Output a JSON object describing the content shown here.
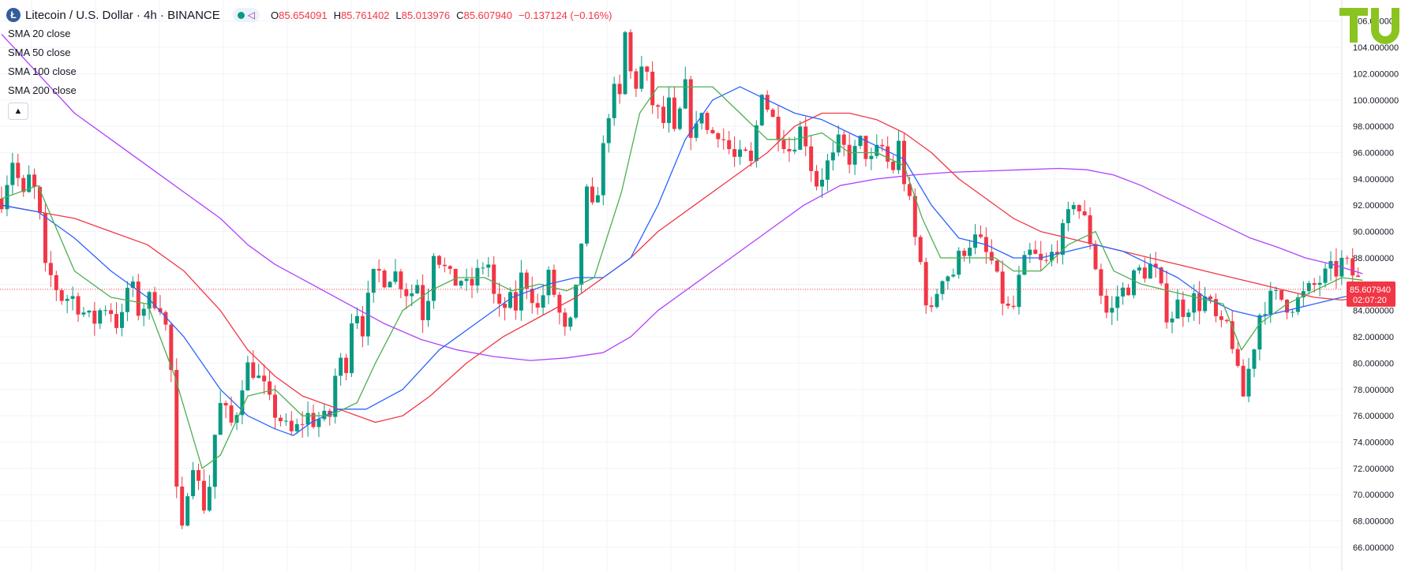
{
  "header": {
    "symbol_icon": "litecoin-icon",
    "title": "Litecoin / U.S. Dollar · 4h · BINANCE",
    "ohlc": {
      "open_label": "O",
      "open": "85.654091",
      "high_label": "H",
      "high": "85.761402",
      "low_label": "L",
      "low": "85.013976",
      "close_label": "C",
      "close": "85.607940",
      "change": "−0.137124 (−0.16%)"
    }
  },
  "indicators": [
    "SMA 20 close",
    "SMA 50 close",
    "SMA 100 close",
    "SMA 200 close"
  ],
  "collapse_icon": "chevron-up-icon",
  "logo": {
    "text": "TU"
  },
  "colors": {
    "up": "#089981",
    "down": "#f23645",
    "sma20": "#4caf50",
    "sma50": "#2962ff",
    "sma100": "#f23645",
    "sma200": "#b040ff",
    "logo": "#8bc420"
  },
  "price_label": {
    "value": "85.607940",
    "countdown": "02:07:20"
  },
  "chart_data": {
    "type": "candlestick",
    "title": "Litecoin / U.S. Dollar · 4h · BINANCE",
    "y_ticks": [
      "66.000000",
      "68.000000",
      "70.000000",
      "72.000000",
      "74.000000",
      "76.000000",
      "78.000000",
      "80.000000",
      "82.000000",
      "84.000000",
      "86.000000",
      "88.000000",
      "90.000000",
      "92.000000",
      "94.000000",
      "96.000000",
      "98.000000",
      "100.000000",
      "102.000000",
      "104.000000",
      "106.000000"
    ],
    "ylim": [
      64.2,
      107.6
    ],
    "grid": true,
    "current_price": 85.60794,
    "close_path": [
      [
        0,
        92.5
      ],
      [
        8,
        94.5
      ],
      [
        14,
        96
      ],
      [
        22,
        92
      ],
      [
        30,
        94
      ],
      [
        40,
        92.5
      ],
      [
        47,
        87
      ],
      [
        55,
        86.5
      ],
      [
        65,
        85
      ],
      [
        78,
        85
      ],
      [
        88,
        84
      ],
      [
        100,
        83
      ],
      [
        112,
        84.5
      ],
      [
        120,
        84
      ],
      [
        130,
        82.5
      ],
      [
        140,
        86.5
      ],
      [
        150,
        84
      ],
      [
        165,
        85
      ],
      [
        175,
        84.5
      ],
      [
        182,
        82
      ],
      [
        188,
        78
      ],
      [
        192,
        70
      ],
      [
        195,
        65.5
      ],
      [
        200,
        68
      ],
      [
        206,
        72
      ],
      [
        212,
        73
      ],
      [
        218,
        69.5
      ],
      [
        225,
        69
      ],
      [
        230,
        72
      ],
      [
        237,
        76.5
      ],
      [
        243,
        77
      ],
      [
        250,
        75
      ],
      [
        258,
        76.5
      ],
      [
        265,
        79
      ],
      [
        272,
        80
      ],
      [
        280,
        79
      ],
      [
        288,
        78
      ],
      [
        296,
        76.5
      ],
      [
        304,
        76
      ],
      [
        312,
        75
      ],
      [
        320,
        74.5
      ],
      [
        328,
        75.5
      ],
      [
        336,
        76
      ],
      [
        344,
        75.5
      ],
      [
        352,
        76
      ],
      [
        358,
        75
      ],
      [
        366,
        79
      ],
      [
        372,
        80
      ],
      [
        378,
        80
      ],
      [
        384,
        83.5
      ],
      [
        390,
        84
      ],
      [
        397,
        82.5
      ],
      [
        405,
        86
      ],
      [
        412,
        87
      ],
      [
        420,
        86.5
      ],
      [
        430,
        87
      ],
      [
        440,
        86
      ],
      [
        448,
        85
      ],
      [
        455,
        86.5
      ],
      [
        460,
        84.5
      ],
      [
        465,
        82.5
      ],
      [
        472,
        89
      ],
      [
        480,
        88
      ],
      [
        487,
        87
      ],
      [
        495,
        86
      ],
      [
        503,
        86.5
      ],
      [
        512,
        85.5
      ],
      [
        520,
        86.5
      ],
      [
        528,
        87.5
      ],
      [
        535,
        87.5
      ],
      [
        540,
        85
      ],
      [
        545,
        84
      ],
      [
        550,
        83.5
      ],
      [
        555,
        85.5
      ],
      [
        562,
        83.5
      ],
      [
        570,
        86.5
      ],
      [
        578,
        86
      ],
      [
        588,
        84
      ],
      [
        600,
        86.5
      ],
      [
        610,
        84.5
      ],
      [
        615,
        82.5
      ],
      [
        621,
        82
      ],
      [
        628,
        84
      ],
      [
        635,
        88.5
      ],
      [
        641,
        93
      ],
      [
        648,
        91.5
      ],
      [
        656,
        94
      ],
      [
        665,
        99
      ],
      [
        672,
        100.5
      ],
      [
        678,
        100
      ],
      [
        684,
        105
      ],
      [
        690,
        102
      ],
      [
        698,
        101
      ],
      [
        704,
        103
      ],
      [
        712,
        100
      ],
      [
        720,
        99
      ],
      [
        728,
        98
      ],
      [
        733,
        100
      ],
      [
        740,
        96
      ],
      [
        748,
        102
      ],
      [
        755,
        98
      ],
      [
        760,
        97
      ],
      [
        768,
        99.5
      ],
      [
        776,
        97
      ],
      [
        784,
        98
      ],
      [
        792,
        97
      ],
      [
        800,
        96
      ],
      [
        808,
        95
      ],
      [
        814,
        96.5
      ],
      [
        820,
        94
      ],
      [
        828,
        98
      ],
      [
        834,
        101
      ],
      [
        842,
        99
      ],
      [
        850,
        98
      ],
      [
        858,
        97
      ],
      [
        866,
        96
      ],
      [
        874,
        98
      ],
      [
        882,
        97
      ],
      [
        888,
        95
      ],
      [
        895,
        93.5
      ],
      [
        904,
        95
      ],
      [
        912,
        95.5
      ],
      [
        920,
        97
      ],
      [
        928,
        95.5
      ],
      [
        936,
        96
      ],
      [
        944,
        97
      ],
      [
        952,
        95
      ],
      [
        960,
        96
      ],
      [
        968,
        96.5
      ],
      [
        976,
        94
      ],
      [
        983,
        97
      ],
      [
        990,
        94
      ],
      [
        996,
        92
      ],
      [
        1003,
        89
      ],
      [
        1010,
        87
      ],
      [
        1016,
        84
      ],
      [
        1022,
        83.5
      ],
      [
        1028,
        86.5
      ],
      [
        1035,
        87
      ],
      [
        1042,
        86.5
      ],
      [
        1050,
        88
      ],
      [
        1058,
        89
      ],
      [
        1066,
        89.5
      ],
      [
        1074,
        89
      ],
      [
        1082,
        88
      ],
      [
        1088,
        87.5
      ],
      [
        1094,
        85.5
      ],
      [
        1100,
        84.5
      ],
      [
        1108,
        83.5
      ],
      [
        1115,
        86
      ],
      [
        1122,
        87.5
      ],
      [
        1130,
        88.5
      ],
      [
        1138,
        87.5
      ],
      [
        1146,
        87.5
      ],
      [
        1154,
        88.5
      ],
      [
        1162,
        89.5
      ],
      [
        1170,
        91
      ],
      [
        1176,
        92.5
      ],
      [
        1183,
        91.5
      ],
      [
        1190,
        90.5
      ],
      [
        1197,
        88.5
      ],
      [
        1204,
        86
      ],
      [
        1210,
        84
      ],
      [
        1216,
        83.5
      ],
      [
        1222,
        85
      ],
      [
        1230,
        85.5
      ],
      [
        1238,
        86
      ],
      [
        1246,
        87
      ],
      [
        1255,
        87
      ],
      [
        1262,
        87.5
      ],
      [
        1270,
        86
      ],
      [
        1276,
        84
      ],
      [
        1282,
        83.5
      ],
      [
        1290,
        84.5
      ],
      [
        1298,
        84
      ],
      [
        1306,
        85
      ],
      [
        1314,
        84.5
      ],
      [
        1322,
        85
      ],
      [
        1330,
        83.5
      ],
      [
        1338,
        82.5
      ],
      [
        1345,
        83
      ],
      [
        1352,
        81
      ],
      [
        1358,
        78
      ],
      [
        1362,
        77.5
      ],
      [
        1366,
        79
      ],
      [
        1372,
        80.5
      ],
      [
        1378,
        83.5
      ],
      [
        1386,
        84.5
      ],
      [
        1394,
        85
      ],
      [
        1402,
        85
      ],
      [
        1410,
        84.5
      ],
      [
        1418,
        84.5
      ],
      [
        1426,
        85
      ],
      [
        1434,
        85.5
      ],
      [
        1442,
        86
      ],
      [
        1450,
        86.5
      ],
      [
        1458,
        87
      ],
      [
        1466,
        87
      ],
      [
        1472,
        88
      ],
      [
        1478,
        87
      ],
      [
        1486,
        86.5
      ],
      [
        1493,
        85.6
      ]
    ],
    "sma20": [
      [
        0,
        92.5
      ],
      [
        40,
        93.5
      ],
      [
        80,
        87
      ],
      [
        120,
        85
      ],
      [
        160,
        84.5
      ],
      [
        190,
        79
      ],
      [
        220,
        72
      ],
      [
        240,
        73
      ],
      [
        270,
        77.5
      ],
      [
        300,
        78
      ],
      [
        330,
        76
      ],
      [
        360,
        76
      ],
      [
        390,
        77
      ],
      [
        410,
        80
      ],
      [
        440,
        84
      ],
      [
        470,
        85.5
      ],
      [
        500,
        86.5
      ],
      [
        530,
        86.5
      ],
      [
        560,
        85.5
      ],
      [
        590,
        86
      ],
      [
        620,
        85.5
      ],
      [
        650,
        86.5
      ],
      [
        680,
        93
      ],
      [
        700,
        99
      ],
      [
        720,
        101
      ],
      [
        750,
        101
      ],
      [
        780,
        101
      ],
      [
        810,
        99
      ],
      [
        840,
        97
      ],
      [
        870,
        97
      ],
      [
        900,
        97.5
      ],
      [
        930,
        96
      ],
      [
        960,
        96
      ],
      [
        990,
        95
      ],
      [
        1010,
        91
      ],
      [
        1030,
        88
      ],
      [
        1060,
        88
      ],
      [
        1090,
        88
      ],
      [
        1110,
        87
      ],
      [
        1140,
        87
      ],
      [
        1170,
        89
      ],
      [
        1200,
        90
      ],
      [
        1220,
        87
      ],
      [
        1250,
        86
      ],
      [
        1280,
        85.5
      ],
      [
        1310,
        85
      ],
      [
        1340,
        84.5
      ],
      [
        1360,
        81
      ],
      [
        1380,
        83
      ],
      [
        1410,
        84.5
      ],
      [
        1440,
        85.5
      ],
      [
        1470,
        86.5
      ],
      [
        1493,
        86.3
      ]
    ],
    "sma50": [
      [
        0,
        92
      ],
      [
        40,
        91.5
      ],
      [
        80,
        89.5
      ],
      [
        120,
        87
      ],
      [
        160,
        85
      ],
      [
        200,
        82
      ],
      [
        240,
        78
      ],
      [
        270,
        76
      ],
      [
        300,
        75
      ],
      [
        320,
        74.5
      ],
      [
        340,
        75.5
      ],
      [
        370,
        76.5
      ],
      [
        400,
        76.5
      ],
      [
        440,
        78
      ],
      [
        480,
        81
      ],
      [
        520,
        83
      ],
      [
        560,
        85
      ],
      [
        600,
        86
      ],
      [
        630,
        86.5
      ],
      [
        660,
        86.5
      ],
      [
        690,
        88
      ],
      [
        720,
        92
      ],
      [
        750,
        97
      ],
      [
        780,
        100
      ],
      [
        810,
        101
      ],
      [
        840,
        100
      ],
      [
        870,
        99
      ],
      [
        900,
        98.5
      ],
      [
        930,
        97.5
      ],
      [
        960,
        96.5
      ],
      [
        990,
        95.5
      ],
      [
        1020,
        92
      ],
      [
        1050,
        89.5
      ],
      [
        1080,
        89
      ],
      [
        1110,
        88
      ],
      [
        1140,
        88
      ],
      [
        1170,
        88.5
      ],
      [
        1200,
        89
      ],
      [
        1230,
        88.5
      ],
      [
        1260,
        87.5
      ],
      [
        1290,
        86.5
      ],
      [
        1320,
        85
      ],
      [
        1350,
        84
      ],
      [
        1380,
        83.5
      ],
      [
        1410,
        84
      ],
      [
        1440,
        84.5
      ],
      [
        1470,
        85
      ],
      [
        1493,
        85.3
      ]
    ],
    "sma100": [
      [
        0,
        92
      ],
      [
        40,
        91.5
      ],
      [
        80,
        91
      ],
      [
        120,
        90
      ],
      [
        160,
        89
      ],
      [
        200,
        87
      ],
      [
        240,
        84
      ],
      [
        270,
        81
      ],
      [
        300,
        79
      ],
      [
        330,
        77.5
      ],
      [
        370,
        76.5
      ],
      [
        410,
        75.5
      ],
      [
        440,
        76
      ],
      [
        470,
        77.5
      ],
      [
        510,
        80
      ],
      [
        550,
        82
      ],
      [
        590,
        83.5
      ],
      [
        630,
        85
      ],
      [
        660,
        86.5
      ],
      [
        690,
        88
      ],
      [
        720,
        90
      ],
      [
        760,
        92
      ],
      [
        800,
        94
      ],
      [
        840,
        96
      ],
      [
        870,
        98
      ],
      [
        900,
        99
      ],
      [
        930,
        99
      ],
      [
        960,
        98.5
      ],
      [
        990,
        97.5
      ],
      [
        1020,
        96
      ],
      [
        1050,
        94
      ],
      [
        1080,
        92.5
      ],
      [
        1110,
        91
      ],
      [
        1140,
        90
      ],
      [
        1170,
        89.5
      ],
      [
        1200,
        89
      ],
      [
        1230,
        88.5
      ],
      [
        1260,
        88
      ],
      [
        1290,
        87.5
      ],
      [
        1320,
        87
      ],
      [
        1350,
        86.5
      ],
      [
        1380,
        86
      ],
      [
        1410,
        85.5
      ],
      [
        1440,
        85
      ],
      [
        1470,
        84.8
      ],
      [
        1493,
        85
      ]
    ],
    "sma200": [
      [
        0,
        105
      ],
      [
        40,
        102
      ],
      [
        80,
        99
      ],
      [
        120,
        97
      ],
      [
        160,
        95
      ],
      [
        200,
        93
      ],
      [
        240,
        91
      ],
      [
        270,
        89
      ],
      [
        300,
        87.5
      ],
      [
        340,
        86
      ],
      [
        380,
        84.5
      ],
      [
        420,
        83
      ],
      [
        460,
        81.8
      ],
      [
        500,
        81
      ],
      [
        540,
        80.5
      ],
      [
        580,
        80.2
      ],
      [
        620,
        80.4
      ],
      [
        660,
        80.8
      ],
      [
        690,
        82
      ],
      [
        720,
        84
      ],
      [
        760,
        86
      ],
      [
        800,
        88
      ],
      [
        840,
        90
      ],
      [
        880,
        92
      ],
      [
        920,
        93.5
      ],
      [
        960,
        94
      ],
      [
        1000,
        94.3
      ],
      [
        1040,
        94.5
      ],
      [
        1080,
        94.6
      ],
      [
        1120,
        94.7
      ],
      [
        1160,
        94.8
      ],
      [
        1190,
        94.7
      ],
      [
        1220,
        94.3
      ],
      [
        1250,
        93.5
      ],
      [
        1280,
        92.5
      ],
      [
        1310,
        91.5
      ],
      [
        1340,
        90.5
      ],
      [
        1370,
        89.5
      ],
      [
        1400,
        88.8
      ],
      [
        1430,
        88
      ],
      [
        1460,
        87.5
      ],
      [
        1493,
        86.8
      ]
    ]
  }
}
